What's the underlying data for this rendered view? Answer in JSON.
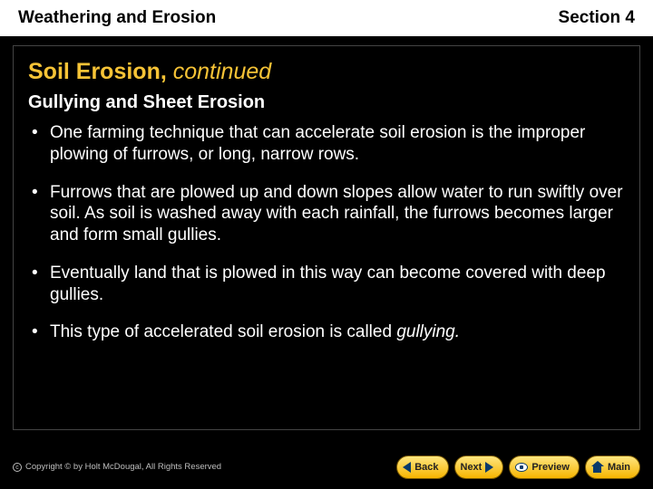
{
  "header": {
    "left": "Weathering and Erosion",
    "right": "Section 4"
  },
  "title": {
    "main": "Soil Erosion, ",
    "continued": "continued"
  },
  "subtitle": "Gullying and Sheet Erosion",
  "bullets": [
    "One farming technique that can accelerate soil erosion is the improper plowing of furrows, or long, narrow rows.",
    "Furrows that are plowed up and down slopes allow water to run swiftly over soil. As soil is washed away with each rainfall, the furrows becomes larger and form small gullies.",
    "Eventually land that is plowed in this way can become covered with deep gullies.",
    "This type of accelerated soil erosion is called "
  ],
  "bullet4_em": "gullying.",
  "footer": {
    "copyright": "Copyright © by Holt McDougal, All Rights Reserved"
  },
  "nav": {
    "back": "Back",
    "next": "Next",
    "preview": "Preview",
    "main": "Main"
  },
  "colors": {
    "heading": "#f6c336",
    "body_text": "#ffffff",
    "background": "#000000",
    "header_bg": "#ffffff",
    "nav_gradient_top": "#ffe680",
    "nav_gradient_bottom": "#f6b400",
    "nav_icon": "#083a6b"
  },
  "fonts": {
    "header_size_pt": 19,
    "title_size_pt": 25,
    "subtitle_size_pt": 20,
    "body_size_pt": 19,
    "nav_size_pt": 11,
    "copyright_size_pt": 9.5
  }
}
